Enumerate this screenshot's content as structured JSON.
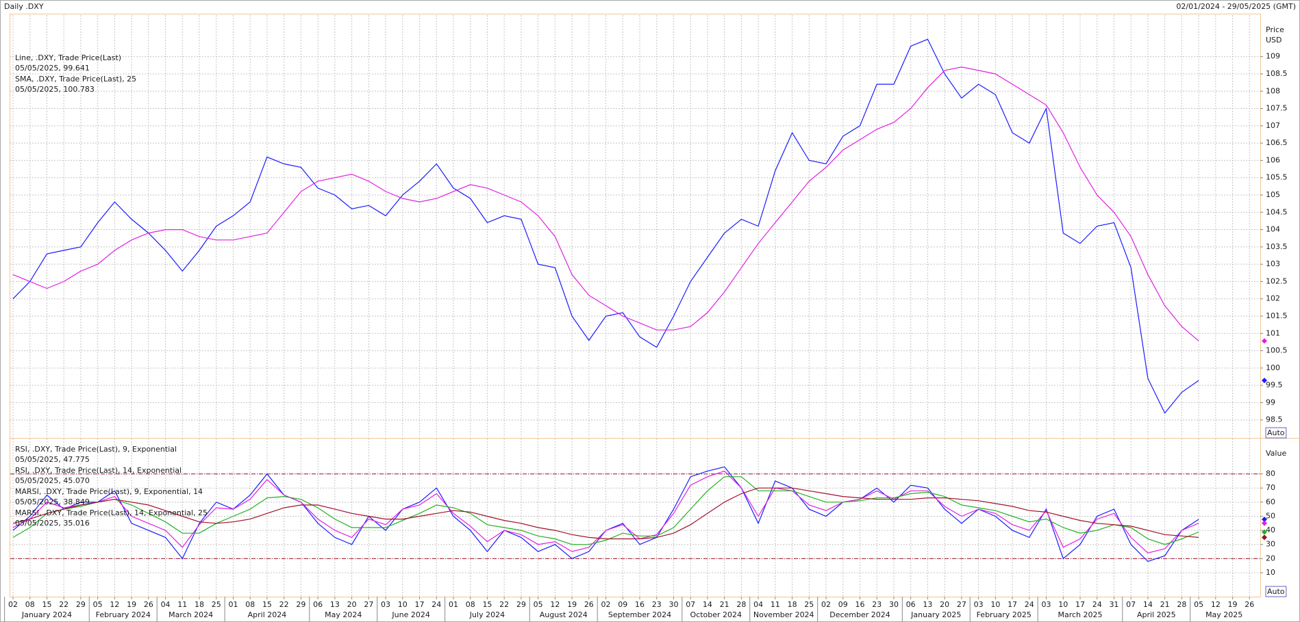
{
  "header": {
    "left": "Daily .DXY",
    "right": "02/01/2024 - 29/05/2025 (GMT)"
  },
  "chart_data": [
    {
      "type": "line",
      "axis_label": [
        "Price",
        "USD"
      ],
      "button": "Auto",
      "categories": [
        "02",
        "08",
        "15",
        "22",
        "29",
        "05",
        "12",
        "19",
        "26",
        "04",
        "11",
        "18",
        "25",
        "01",
        "08",
        "15",
        "22",
        "29",
        "06",
        "13",
        "20",
        "27",
        "03",
        "10",
        "17",
        "24",
        "01",
        "08",
        "15",
        "22",
        "29",
        "05",
        "12",
        "19",
        "26",
        "02",
        "09",
        "16",
        "23",
        "30",
        "07",
        "14",
        "21",
        "28",
        "04",
        "11",
        "18",
        "25",
        "02",
        "09",
        "16",
        "23",
        "30",
        "06",
        "13",
        "20",
        "27",
        "03",
        "10",
        "17",
        "24",
        "03",
        "10",
        "17",
        "24",
        "31",
        "07",
        "14",
        "21",
        "28",
        "05",
        "12",
        "19",
        "26"
      ],
      "months": [
        "January 2024",
        "February 2024",
        "March 2024",
        "April 2024",
        "May 2024",
        "June 2024",
        "July 2024",
        "August 2024",
        "September 2024",
        "October 2024",
        "November 2024",
        "December 2024",
        "January 2025",
        "February 2025",
        "March 2025",
        "April 2025",
        "May 2025"
      ],
      "ylim": [
        98,
        110.2
      ],
      "yticks": [
        98.5,
        99,
        99.5,
        100,
        100.5,
        101,
        101.5,
        102,
        102.5,
        103,
        103.5,
        104,
        104.5,
        105,
        105.5,
        106,
        106.5,
        107,
        107.5,
        108,
        108.5,
        109
      ],
      "grid": true,
      "series": [
        {
          "name": "Line, .DXY, Trade Price(Last)",
          "last_label": "05/05/2025, 99.641",
          "color": "#1a1aff",
          "values": [
            102.0,
            102.5,
            103.3,
            103.4,
            103.5,
            104.2,
            104.8,
            104.3,
            103.9,
            103.4,
            102.8,
            103.4,
            104.1,
            104.4,
            104.8,
            106.1,
            105.9,
            105.8,
            105.2,
            105.0,
            104.6,
            104.7,
            104.4,
            105.0,
            105.4,
            105.9,
            105.2,
            104.9,
            104.2,
            104.4,
            104.3,
            103.0,
            102.9,
            101.5,
            100.8,
            101.5,
            101.6,
            100.9,
            100.6,
            101.5,
            102.5,
            103.2,
            103.9,
            104.3,
            104.1,
            105.7,
            106.8,
            106.0,
            105.9,
            106.7,
            107.0,
            108.2,
            108.2,
            109.3,
            109.5,
            108.5,
            107.8,
            108.2,
            107.9,
            106.8,
            106.5,
            107.5,
            103.9,
            103.6,
            104.1,
            104.2,
            102.9,
            99.7,
            98.7,
            99.3,
            99.641,
            null,
            null,
            null
          ]
        },
        {
          "name": "SMA, .DXY, Trade Price(Last), 25",
          "last_label": "05/05/2025, 100.783",
          "color": "#e020e0",
          "values": [
            102.7,
            102.5,
            102.3,
            102.5,
            102.8,
            103.0,
            103.4,
            103.7,
            103.9,
            104.0,
            104.0,
            103.8,
            103.7,
            103.7,
            103.8,
            103.9,
            104.5,
            105.1,
            105.4,
            105.5,
            105.6,
            105.4,
            105.1,
            104.9,
            104.8,
            104.9,
            105.1,
            105.3,
            105.2,
            105.0,
            104.8,
            104.4,
            103.8,
            102.7,
            102.1,
            101.8,
            101.5,
            101.3,
            101.1,
            101.1,
            101.2,
            101.6,
            102.2,
            102.9,
            103.6,
            104.2,
            104.8,
            105.4,
            105.8,
            106.3,
            106.6,
            106.9,
            107.1,
            107.5,
            108.1,
            108.6,
            108.7,
            108.6,
            108.5,
            108.2,
            107.9,
            107.6,
            106.8,
            105.8,
            105.0,
            104.5,
            103.8,
            102.7,
            101.8,
            101.2,
            100.783,
            null,
            null,
            null
          ]
        }
      ]
    },
    {
      "type": "line",
      "axis_label": [
        "Value"
      ],
      "button": "Auto",
      "ylim": [
        -6.5,
        105
      ],
      "yticks": [
        10,
        20,
        30,
        40,
        50,
        60,
        70,
        80
      ],
      "grid": true,
      "ref_lines": {
        "values": [
          80,
          20
        ],
        "color": "#a0102a"
      },
      "series": [
        {
          "name": "RSI, .DXY, Trade Price(Last),  9, Exponential",
          "last_label": "05/05/2025, 47.775",
          "color": "#1a1aff",
          "values": [
            40,
            50,
            65,
            55,
            60,
            60,
            68,
            45,
            40,
            35,
            20,
            45,
            60,
            55,
            65,
            80,
            65,
            60,
            45,
            35,
            30,
            50,
            40,
            55,
            60,
            70,
            50,
            40,
            25,
            40,
            35,
            25,
            30,
            20,
            25,
            40,
            45,
            30,
            35,
            55,
            78,
            82,
            85,
            70,
            45,
            75,
            70,
            55,
            50,
            60,
            62,
            70,
            60,
            72,
            70,
            55,
            45,
            55,
            50,
            40,
            35,
            55,
            20,
            30,
            50,
            55,
            30,
            18,
            22,
            40,
            47.775,
            null,
            null,
            null
          ]
        },
        {
          "name": "RSI, .DXY, Trade Price(Last),  14, Exponential",
          "last_label": "05/05/2025, 45.070",
          "color": "#e020e0",
          "values": [
            42,
            48,
            60,
            56,
            58,
            60,
            64,
            50,
            45,
            40,
            28,
            44,
            56,
            55,
            62,
            76,
            65,
            60,
            48,
            40,
            35,
            48,
            44,
            55,
            58,
            66,
            52,
            43,
            32,
            40,
            37,
            30,
            32,
            25,
            28,
            40,
            44,
            34,
            37,
            52,
            72,
            78,
            82,
            70,
            50,
            70,
            68,
            58,
            54,
            60,
            62,
            68,
            62,
            68,
            68,
            57,
            50,
            55,
            52,
            44,
            40,
            54,
            28,
            34,
            48,
            52,
            35,
            24,
            27,
            40,
            45.07,
            null,
            null,
            null
          ]
        },
        {
          "name": "MARSI, .DXY, Trade Price(Last),  9, Exponential, 14",
          "last_label": "05/05/2025, 38.849",
          "color": "#22b022",
          "values": [
            35,
            42,
            52,
            55,
            57,
            60,
            62,
            58,
            52,
            46,
            38,
            38,
            45,
            50,
            55,
            63,
            64,
            62,
            56,
            48,
            42,
            42,
            42,
            47,
            52,
            58,
            56,
            52,
            44,
            42,
            40,
            36,
            34,
            30,
            30,
            33,
            38,
            36,
            36,
            42,
            55,
            68,
            78,
            78,
            68,
            68,
            68,
            64,
            60,
            60,
            61,
            63,
            63,
            66,
            67,
            64,
            58,
            56,
            54,
            50,
            46,
            48,
            42,
            38,
            40,
            44,
            42,
            34,
            30,
            34,
            38.849,
            null,
            null,
            null
          ]
        },
        {
          "name": "MARSI, .DXY, Trade Price(Last),  14, Exponential, 25",
          "last_label": "05/05/2025, 35.016",
          "color": "#a0102a",
          "values": [
            45,
            48,
            52,
            55,
            58,
            60,
            62,
            60,
            58,
            54,
            50,
            46,
            45,
            46,
            48,
            52,
            56,
            58,
            58,
            55,
            52,
            50,
            48,
            48,
            50,
            52,
            54,
            53,
            50,
            47,
            45,
            42,
            40,
            37,
            35,
            34,
            34,
            34,
            35,
            38,
            44,
            52,
            60,
            66,
            70,
            70,
            70,
            68,
            66,
            64,
            63,
            62,
            62,
            62,
            63,
            63,
            62,
            61,
            59,
            57,
            54,
            53,
            50,
            47,
            45,
            44,
            43,
            40,
            37,
            36,
            35.016,
            null,
            null,
            null
          ]
        }
      ]
    }
  ]
}
